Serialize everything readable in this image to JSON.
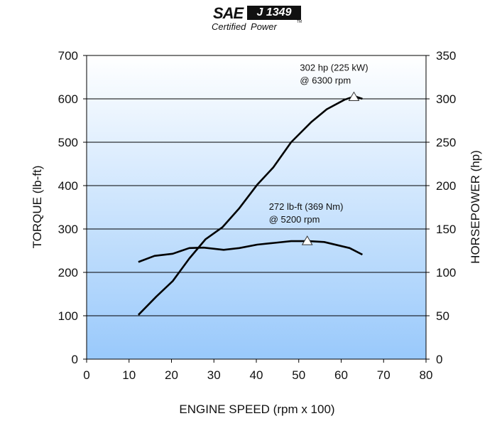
{
  "logo": {
    "brand": "SAE",
    "standard": "J 1349",
    "tagline": "Certified Power",
    "tm": "TM"
  },
  "chart_data": {
    "type": "line",
    "title": "",
    "xlabel": "ENGINE SPEED (rpm x 100)",
    "ylabel": "TORQUE (lb-ft)",
    "y2label": "HORSEPOWER (hp)",
    "xlim": [
      0,
      80
    ],
    "ylim": [
      0,
      700
    ],
    "y2lim": [
      0,
      350
    ],
    "xticks": [
      "0",
      "10",
      "20",
      "30",
      "40",
      "50",
      "60",
      "70",
      "80"
    ],
    "yticks": [
      "0",
      "100",
      "200",
      "300",
      "400",
      "500",
      "600",
      "700"
    ],
    "y2ticks": [
      "0",
      "50",
      "100",
      "150",
      "200",
      "250",
      "300",
      "350"
    ],
    "grid": "horizontal",
    "background": {
      "top": "#ffffff",
      "bottom": "#99c9fb"
    },
    "series": [
      {
        "axis": "left",
        "x": [
          12.2,
          16,
          20.3,
          24.2,
          27.6,
          32.3,
          36,
          40.2,
          44.3,
          48.2,
          52.4,
          56,
          62,
          65
        ],
        "values": [
          224,
          238,
          243,
          256,
          257,
          252,
          256,
          264,
          268,
          272,
          272,
          270,
          256,
          241
        ]
      },
      {
        "axis": "right",
        "x": [
          12.2,
          16.4,
          20.3,
          24.2,
          28,
          32,
          36,
          40.2,
          44,
          48.2,
          52.9,
          56.6,
          60.8,
          63.2,
          65
        ],
        "values": [
          51,
          72,
          90,
          116,
          138,
          152,
          174,
          201,
          221,
          250,
          273,
          288,
          299,
          303,
          300
        ]
      }
    ],
    "annotations": [
      {
        "lines": [
          "272 lb-ft (369 Nm)",
          "@ 5200 rpm"
        ],
        "x": 52,
        "y": 272,
        "axis": "left"
      },
      {
        "lines": [
          "302 hp (225 kW)",
          "@ 6300 rpm"
        ],
        "x": 63,
        "y": 302,
        "axis": "right"
      }
    ]
  }
}
